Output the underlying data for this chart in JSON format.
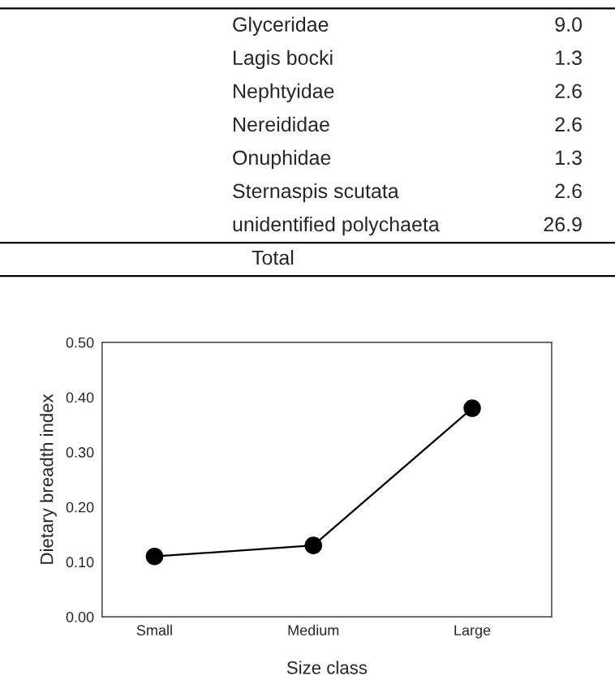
{
  "chart_data": [
    {
      "type": "other",
      "categories": [
        "Glyceridae",
        "Lagis bocki",
        "Nephtyidae",
        "Nereididae",
        "Onuphidae",
        "Sternaspis scutata",
        "unidentified polychaeta",
        "Total"
      ],
      "values": [
        9.0,
        1.3,
        2.6,
        2.6,
        1.3,
        2.6,
        26.9,
        null
      ],
      "value_labels": [
        "9.0",
        "1.3",
        "2.6",
        "2.6",
        "1.3",
        "2.6",
        "26.9",
        null
      ]
    },
    {
      "type": "line",
      "categories": [
        "Small",
        "Medium",
        "Large"
      ],
      "values": [
        0.11,
        0.13,
        0.38
      ],
      "color": "#000000",
      "marker": "circle",
      "xlabel": "Size class",
      "ylabel": "Dietary breadth index",
      "ylim": [
        0,
        0.5
      ],
      "yticks": [
        {
          "value": 0,
          "label": "0.00"
        },
        {
          "value": 0.1,
          "label": "0.10"
        },
        {
          "value": 0.2,
          "label": "0.20"
        },
        {
          "value": 0.3,
          "label": "0.30"
        },
        {
          "value": 0.4,
          "label": "0.40"
        },
        {
          "value": 0.5,
          "label": "0.50"
        }
      ],
      "grid": false,
      "legend": false
    }
  ]
}
